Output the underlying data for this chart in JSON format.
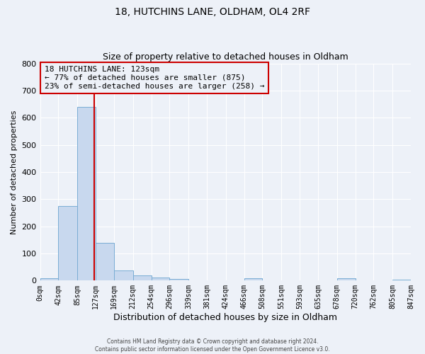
{
  "title": "18, HUTCHINS LANE, OLDHAM, OL4 2RF",
  "subtitle": "Size of property relative to detached houses in Oldham",
  "xlabel": "Distribution of detached houses by size in Oldham",
  "ylabel": "Number of detached properties",
  "bin_edges": [
    0,
    42,
    85,
    127,
    169,
    212,
    254,
    296,
    339,
    381,
    424,
    466,
    508,
    551,
    593,
    635,
    678,
    720,
    762,
    805,
    847
  ],
  "bin_counts": [
    8,
    275,
    640,
    140,
    38,
    20,
    12,
    5,
    0,
    0,
    0,
    8,
    0,
    0,
    0,
    0,
    8,
    0,
    0,
    3
  ],
  "bar_color": "#c8d8ee",
  "bar_edge_color": "#7aadd4",
  "property_size": 123,
  "vline_color": "#cc0000",
  "annotation_line1": "18 HUTCHINS LANE: 123sqm",
  "annotation_line2": "← 77% of detached houses are smaller (875)",
  "annotation_line3": "23% of semi-detached houses are larger (258) →",
  "annotation_box_edge_color": "#cc0000",
  "ylim": [
    0,
    800
  ],
  "yticks": [
    0,
    100,
    200,
    300,
    400,
    500,
    600,
    700,
    800
  ],
  "footer_line1": "Contains HM Land Registry data © Crown copyright and database right 2024.",
  "footer_line2": "Contains public sector information licensed under the Open Government Licence v3.0.",
  "background_color": "#edf1f8",
  "grid_color": "#ffffff",
  "title_fontsize": 10,
  "subtitle_fontsize": 9,
  "ylabel_fontsize": 8,
  "xlabel_fontsize": 9
}
